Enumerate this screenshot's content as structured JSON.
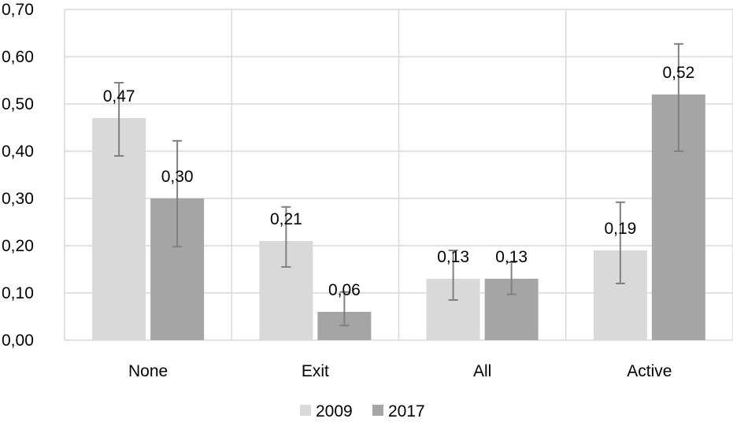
{
  "chart_data": {
    "type": "bar",
    "categories": [
      "None",
      "Exit",
      "All",
      "Active"
    ],
    "series": [
      {
        "name": "2009",
        "values": [
          0.47,
          0.21,
          0.13,
          0.19
        ],
        "labels": [
          "0,47",
          "0,21",
          "0,13",
          "0,19"
        ],
        "error_low": [
          0.39,
          0.155,
          0.085,
          0.12
        ],
        "error_high": [
          0.545,
          0.282,
          0.19,
          0.292
        ],
        "color": "#d9d9d9"
      },
      {
        "name": "2017",
        "values": [
          0.3,
          0.06,
          0.13,
          0.52
        ],
        "labels": [
          "0,30",
          "0,06",
          "0,13",
          "0,52"
        ],
        "error_low": [
          0.198,
          0.031,
          0.097,
          0.4
        ],
        "error_high": [
          0.422,
          0.102,
          0.165,
          0.627
        ],
        "color": "#a5a5a5"
      }
    ],
    "ylim": [
      0,
      0.7
    ],
    "yticks": [
      0,
      0.1,
      0.2,
      0.3,
      0.4,
      0.5,
      0.6,
      0.7
    ],
    "ytick_labels": [
      "0,00",
      "0,10",
      "0,20",
      "0,30",
      "0,40",
      "0,50",
      "0,60",
      "0,70"
    ],
    "grid": true,
    "legend_position": "bottom",
    "error_bar_color": "#808080",
    "grid_color": "#d9d9d9"
  }
}
